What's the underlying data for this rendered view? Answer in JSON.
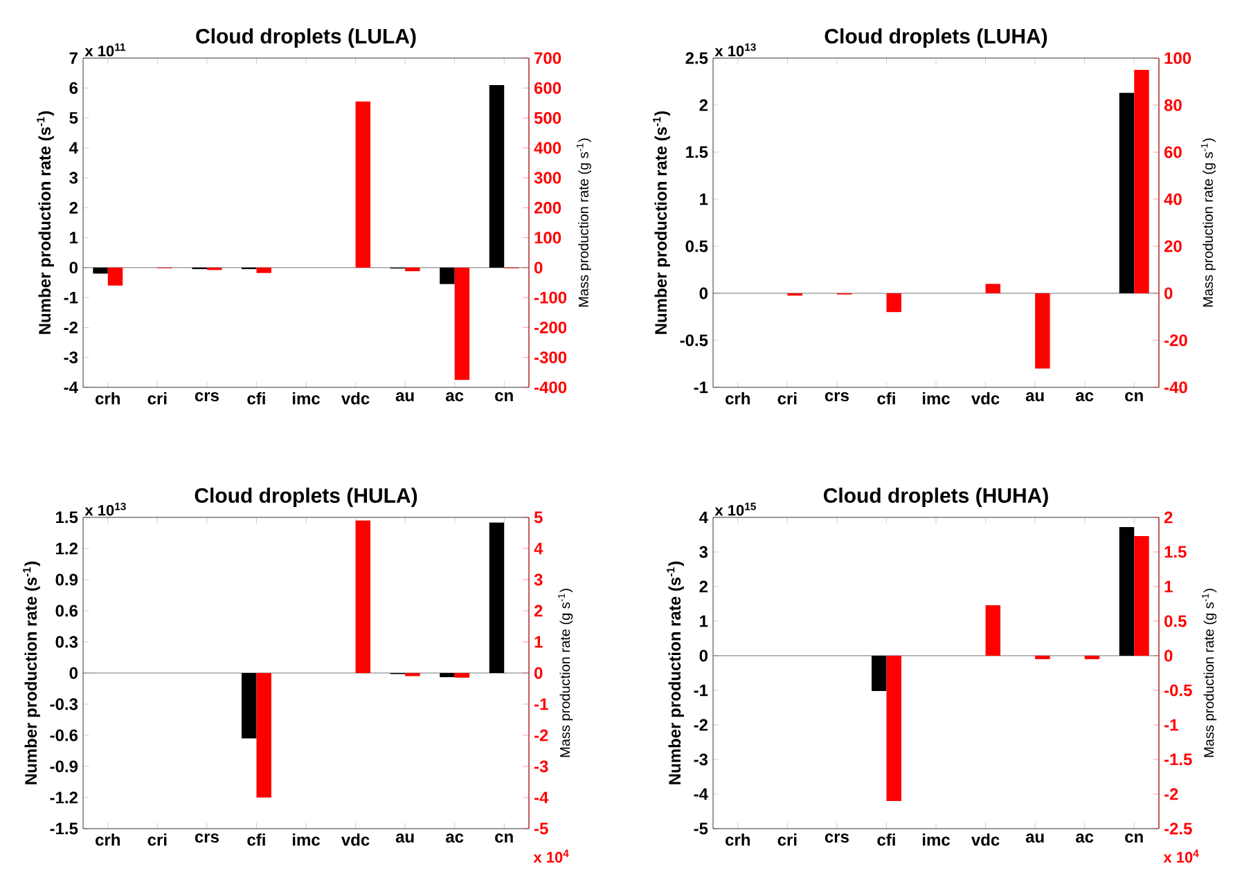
{
  "chart_data": [
    {
      "type": "bar",
      "title": "Cloud droplets (LULA)",
      "ylabel": "Number production rate (s$^{-1}$)",
      "y2label": "Mass production rate (g s$^{-1}$)",
      "annotations": [
        "x 10$^{11}$"
      ],
      "categories": [
        "crh",
        "cri",
        "crs",
        "cfi",
        "imc",
        "vdc",
        "au",
        "ac",
        "cn"
      ],
      "series": [
        {
          "color": "#000000",
          "axis": "y",
          "values": [
            -0.2,
            0,
            -0.05,
            -0.05,
            0,
            0,
            -0.03,
            -0.55,
            6.1
          ]
        },
        {
          "color": "#ff0000",
          "axis": "y2",
          "values": [
            -60,
            -2,
            -8,
            -18,
            0,
            555,
            -12,
            -375,
            -2
          ]
        }
      ],
      "ylim": [
        -4,
        7
      ],
      "yticks": [
        -4,
        -3,
        -2,
        -1,
        0,
        1,
        2,
        3,
        4,
        5,
        6,
        7
      ],
      "y2lim": [
        -400,
        700
      ],
      "y2ticks": [
        -400,
        -300,
        -200,
        -100,
        0,
        100,
        200,
        300,
        400,
        500,
        600,
        700
      ]
    },
    {
      "type": "bar",
      "title": "Cloud droplets (LUHA)",
      "ylabel": "Number production rate (s$^{-1}$)",
      "y2label": "Mass production rate (g s$^{-1}$)",
      "annotations": [
        "x 10$^{13}$"
      ],
      "categories": [
        "crh",
        "cri",
        "crs",
        "cfi",
        "imc",
        "vdc",
        "au",
        "ac",
        "cn"
      ],
      "series": [
        {
          "color": "#000000",
          "axis": "y",
          "values": [
            0,
            0,
            0,
            0,
            0,
            0,
            0,
            0,
            2.13
          ]
        },
        {
          "color": "#ff0000",
          "axis": "y2",
          "values": [
            0,
            -1,
            -0.5,
            -8,
            0,
            4,
            -32,
            0,
            95
          ]
        }
      ],
      "ylim": [
        -1,
        2.5
      ],
      "yticks": [
        -1,
        -0.5,
        0,
        0.5,
        1,
        1.5,
        2,
        2.5
      ],
      "y2lim": [
        -40,
        100
      ],
      "y2ticks": [
        -40,
        -20,
        0,
        20,
        40,
        60,
        80,
        100
      ]
    },
    {
      "type": "bar",
      "title": "Cloud droplets (HULA)",
      "ylabel": "Number production rate (s$^{-1}$)",
      "y2label": "Mass production rate (g s$^{-1}$)",
      "annotations": [
        "x 10$^{13}$",
        "x 10$^{4}$"
      ],
      "categories": [
        "crh",
        "cri",
        "crs",
        "cfi",
        "imc",
        "vdc",
        "au",
        "ac",
        "cn"
      ],
      "series": [
        {
          "color": "#000000",
          "axis": "y",
          "values": [
            0,
            0,
            0,
            -0.63,
            0,
            0,
            -0.01,
            -0.04,
            1.45
          ]
        },
        {
          "color": "#ff0000",
          "axis": "y2",
          "values": [
            0,
            0,
            0,
            -4.0,
            0,
            4.9,
            -0.1,
            -0.15,
            0
          ]
        }
      ],
      "ylim": [
        -1.5,
        1.5
      ],
      "yticks": [
        -1.5,
        -1.2,
        -0.9,
        -0.6,
        -0.3,
        0,
        0.3,
        0.6,
        0.9,
        1.2,
        1.5
      ],
      "y2lim": [
        -5,
        5
      ],
      "y2ticks": [
        -5,
        -4,
        -3,
        -2,
        -1,
        0,
        1,
        2,
        3,
        4,
        5
      ]
    },
    {
      "type": "bar",
      "title": "Cloud droplets (HUHA)",
      "ylabel": "Number production rate (s$^{-1}$)",
      "y2label": "Mass production rate (g s$^{-1}$)",
      "annotations": [
        "x 10$^{15}$",
        "x 10$^{4}$"
      ],
      "categories": [
        "crh",
        "cri",
        "crs",
        "cfi",
        "imc",
        "vdc",
        "au",
        "ac",
        "cn"
      ],
      "series": [
        {
          "color": "#000000",
          "axis": "y",
          "values": [
            0,
            0,
            0,
            -1.02,
            0,
            0,
            0,
            0,
            3.72
          ]
        },
        {
          "color": "#ff0000",
          "axis": "y2",
          "values": [
            0,
            0,
            0,
            -2.1,
            0,
            0.73,
            -0.05,
            -0.05,
            1.73
          ]
        }
      ],
      "ylim": [
        -5,
        4
      ],
      "yticks": [
        -5,
        -4,
        -3,
        -2,
        -1,
        0,
        1,
        2,
        3,
        4
      ],
      "y2lim": [
        -2.5,
        2
      ],
      "y2ticks": [
        -2.5,
        -2,
        -1.5,
        -1,
        -0.5,
        0,
        0.5,
        1,
        1.5,
        2
      ]
    }
  ]
}
